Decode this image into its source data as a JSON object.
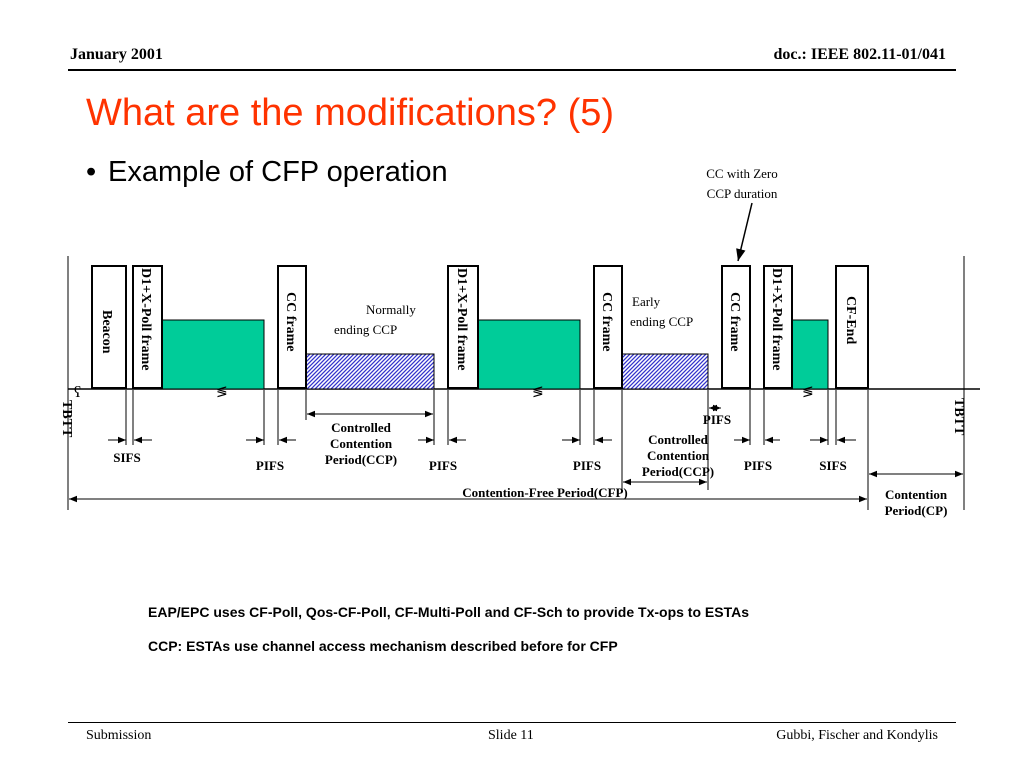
{
  "header": {
    "date": "January  2001",
    "doc": "doc.: IEEE 802.11-01/041"
  },
  "slide": {
    "title": "What are the modifications? (5)",
    "bullet": "Example of CFP operation"
  },
  "diagram": {
    "frames": {
      "beacon": "Beacon",
      "poll1": "D1+X-Poll frame",
      "cc1": "CC frame",
      "poll2": "D1+X-Poll frame",
      "cc2": "CC frame",
      "cc3": "CC frame",
      "poll3": "D1+X-Poll frame",
      "cfend": "CF-End"
    },
    "annotations": {
      "zero_ccp_1": "CC with Zero",
      "zero_ccp_2": "CCP duration",
      "normal_1": "Normally",
      "normal_2": "ending CCP",
      "early_1": "Early",
      "early_2": "ending CCP",
      "ccp1_1": "Controlled",
      "ccp1_2": "Contention",
      "ccp1_3": "Period(CCP)",
      "ccp2_1": "Controlled",
      "ccp2_2": "Contention",
      "ccp2_3": "Period(CCP)",
      "cfp": "Contention-Free Period(CFP)",
      "cp_1": "Contention",
      "cp_2": "Period(CP)"
    },
    "intervals": {
      "sifs1": "SIFS",
      "pifs1": "PIFS",
      "pifs2": "PIFS",
      "pifs3": "PIFS",
      "pifs_top": "PIFS",
      "pifs4": "PIFS",
      "sifs2": "SIFS"
    },
    "tbtt_left": "TBTT",
    "tbtt_right": "TBTT",
    "colors": {
      "green": "#00cc99",
      "hatch": "#3333cc"
    }
  },
  "legend": {
    "green_text": "EAP/EPC uses CF-Poll, Qos-CF-Poll, CF-Multi-Poll and CF-Sch to provide Tx-ops to ESTAs",
    "hatch_text": "CCP: ESTAs use channel access mechanism described before for CFP"
  },
  "footer": {
    "left": "Submission",
    "center": "Slide 11",
    "right": "Gubbi, Fischer and Kondylis"
  }
}
